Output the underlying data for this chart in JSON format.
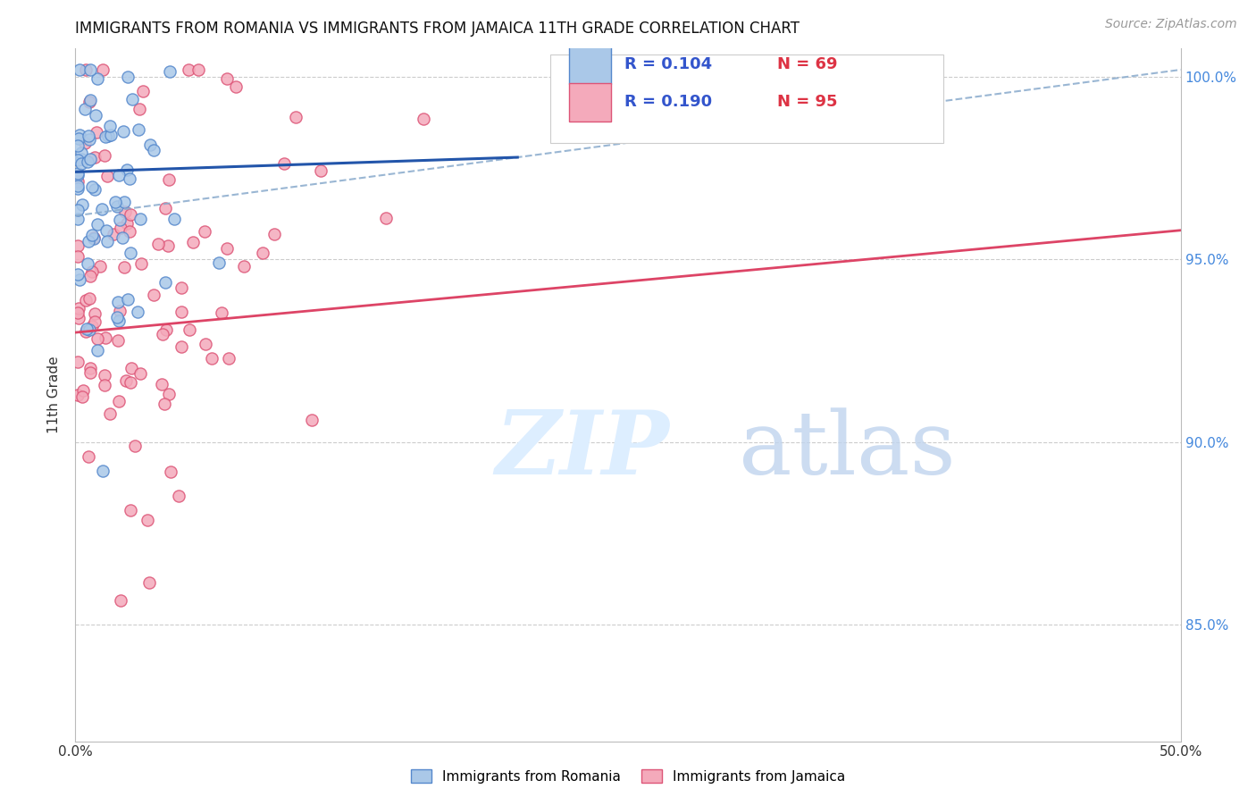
{
  "title": "IMMIGRANTS FROM ROMANIA VS IMMIGRANTS FROM JAMAICA 11TH GRADE CORRELATION CHART",
  "source_text": "Source: ZipAtlas.com",
  "ylabel": "11th Grade",
  "xlim": [
    0.0,
    0.5
  ],
  "ylim": [
    0.818,
    1.008
  ],
  "xticks": [
    0.0,
    0.1,
    0.2,
    0.3,
    0.4,
    0.5
  ],
  "xtick_labels": [
    "0.0%",
    "",
    "",
    "",
    "",
    "50.0%"
  ],
  "yticks": [
    0.85,
    0.9,
    0.95,
    1.0
  ],
  "ytick_labels_right": [
    "85.0%",
    "90.0%",
    "95.0%",
    "100.0%"
  ],
  "romania_fill": "#aac8e8",
  "romania_edge": "#5588cc",
  "jamaica_fill": "#f4aabb",
  "jamaica_edge": "#dd5577",
  "romania_line_color": "#2255aa",
  "jamaica_line_color": "#dd4466",
  "dash_line_color": "#88aacc",
  "romania_R": 0.104,
  "romania_N": 69,
  "jamaica_R": 0.19,
  "jamaica_N": 95,
  "legend_R_color": "#3355cc",
  "legend_N_color": "#dd3344",
  "marker_size": 90,
  "grid_color": "#cccccc",
  "grid_style": "--",
  "background": "#ffffff",
  "right_tick_color": "#4488dd",
  "title_fontsize": 12,
  "source_fontsize": 10,
  "watermark_zip_color": "#ddeeff",
  "watermark_atlas_color": "#c0d4ee",
  "romania_line_x0": 0.0,
  "romania_line_x1": 0.2,
  "romania_line_y0": 0.974,
  "romania_line_y1": 0.978,
  "jamaica_line_x0": 0.0,
  "jamaica_line_x1": 0.5,
  "jamaica_line_y0": 0.93,
  "jamaica_line_y1": 0.958,
  "dash_line_x0": 0.0,
  "dash_line_x1": 0.5,
  "dash_line_y0": 0.962,
  "dash_line_y1": 1.002
}
